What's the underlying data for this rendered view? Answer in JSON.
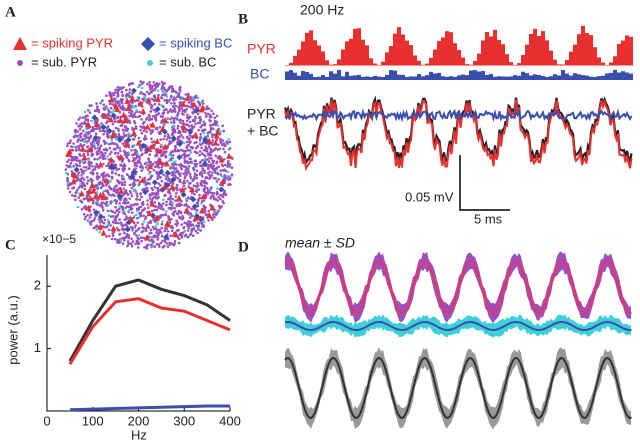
{
  "panel_labels": [
    "A",
    "B",
    "C",
    "D"
  ],
  "panel_a": {
    "legend": [
      "= spiking PYR",
      "= spiking BC",
      "= sub. PYR",
      "= sub. BC"
    ]
  },
  "panel_b": {
    "freq_label": "200 Hz",
    "row_labels": [
      "PYR",
      "BC",
      "PYR",
      "+ BC"
    ],
    "scale_voltage": "0.05 mV",
    "scale_time": "5 ms"
  },
  "panel_d": {
    "title": "mean ± SD"
  },
  "chart_data": {
    "type": "line",
    "y_multiplier": "×10−5",
    "xlabel": "Hz",
    "ylabel": "power (a.u.)",
    "x": [
      50,
      100,
      150,
      200,
      250,
      300,
      350,
      400
    ],
    "series": [
      {
        "name": null,
        "color": "#333333",
        "values": [
          0.8,
          1.45,
          2.0,
          2.1,
          1.95,
          1.85,
          1.7,
          1.45
        ]
      },
      {
        "name": null,
        "color": "#e8302f",
        "values": [
          0.75,
          1.35,
          1.75,
          1.8,
          1.65,
          1.6,
          1.45,
          1.3
        ]
      },
      {
        "name": null,
        "color": "#3a4eb0",
        "values": [
          0.02,
          0.03,
          0.04,
          0.05,
          0.06,
          0.07,
          0.08,
          0.08
        ]
      }
    ],
    "xlim": [
      0,
      400
    ],
    "ylim": [
      0,
      2.5
    ],
    "xticks": [
      0,
      100,
      200,
      300,
      400
    ],
    "yticks": [
      1,
      2
    ]
  }
}
